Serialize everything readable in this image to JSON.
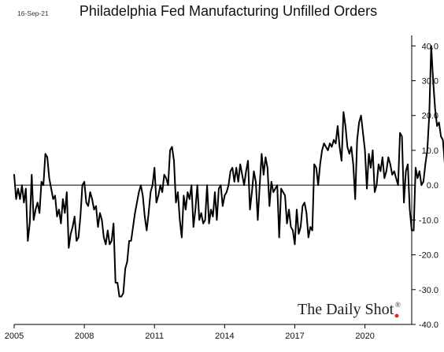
{
  "date_stamp": "16-Sep-21",
  "watermark": {
    "text": "The Daily Shot",
    "mark": "®",
    "dot_color": "#e8262b"
  },
  "colors": {
    "line": "#000000",
    "last_point": "#e8262b"
  },
  "chart_data": {
    "type": "line",
    "title": "Philadelphia Fed Manufacturing Unfilled Orders",
    "xlabel": "",
    "ylabel": "",
    "x_ticks": [
      2005,
      2008,
      2011,
      2014,
      2017,
      2020
    ],
    "x_tick_labels": [
      "2005",
      "2008",
      "2011",
      "2014",
      "2017",
      "2020"
    ],
    "xlim": [
      2005.0,
      2022.0
    ],
    "y_ticks": [
      40,
      30,
      20,
      10,
      0,
      -10,
      -20,
      -30,
      -40
    ],
    "y_tick_labels": [
      "40.0",
      "30.0",
      "20.0",
      "10.0",
      "0.0",
      "-10.0",
      "-20.0",
      "-30.0",
      "-40.0"
    ],
    "ylim": [
      -40,
      43
    ],
    "y_axis_side": "right",
    "zero_line": true,
    "grid": false,
    "last_point_marker": true,
    "series": [
      {
        "x_start": 2005.0,
        "step": 0.08333,
        "values": [
          3,
          -4,
          -1,
          -4,
          0,
          -5,
          -1,
          -16,
          -11,
          3,
          -10,
          -7,
          -5,
          -8,
          1,
          0,
          9,
          8,
          2,
          -1,
          -4,
          -3,
          -9,
          -7,
          -11,
          -4,
          -8,
          -2,
          -18,
          -14,
          -12,
          -9,
          -16,
          -15,
          -9,
          0,
          1,
          -5,
          -6,
          -2,
          -4,
          -7,
          -6,
          -12,
          -8,
          -10,
          -15,
          -17,
          -13,
          -17,
          -16,
          -11,
          -28,
          -28,
          -32,
          -32,
          -31,
          -24,
          -22,
          -16,
          -16,
          -12,
          -8,
          -5,
          -2,
          0,
          -3,
          -9,
          -13,
          -8,
          -2,
          0,
          5,
          -5,
          -3,
          0,
          -2,
          3,
          2,
          0,
          10,
          11,
          7,
          -5,
          -2,
          -10,
          -15,
          -3,
          -7,
          -2,
          -4,
          0,
          -12,
          -7,
          0,
          -10,
          -8,
          -11,
          -10,
          0,
          -11,
          -7,
          -9,
          -2,
          -10,
          -1,
          0,
          -6,
          -3,
          -2,
          0,
          4,
          5,
          1,
          5,
          1,
          6,
          3,
          0,
          4,
          7,
          -7,
          -2,
          4,
          1,
          -10,
          0,
          9,
          3,
          8,
          5,
          -6,
          1,
          -2,
          -1,
          0,
          -15,
          -1,
          -2,
          -3,
          -11,
          -7,
          -12,
          -13,
          -17,
          -7,
          -14,
          -12,
          -6,
          -5,
          -8,
          -15,
          -12,
          -13,
          6,
          5,
          0,
          6,
          10,
          12,
          11,
          10,
          12,
          11,
          13,
          12,
          17,
          11,
          7,
          21,
          17,
          11,
          9,
          11,
          6,
          -4,
          13,
          18,
          20,
          15,
          10,
          -1,
          9,
          5,
          10,
          -2,
          0,
          6,
          4,
          8,
          2,
          4,
          8,
          6,
          3,
          4,
          2,
          0,
          15,
          14,
          -5,
          4,
          6,
          -7,
          -13,
          -13,
          5,
          2,
          4,
          0,
          1,
          6,
          10,
          20,
          40,
          30,
          22,
          17,
          18,
          14,
          13,
          6,
          5
        ]
      }
    ]
  }
}
